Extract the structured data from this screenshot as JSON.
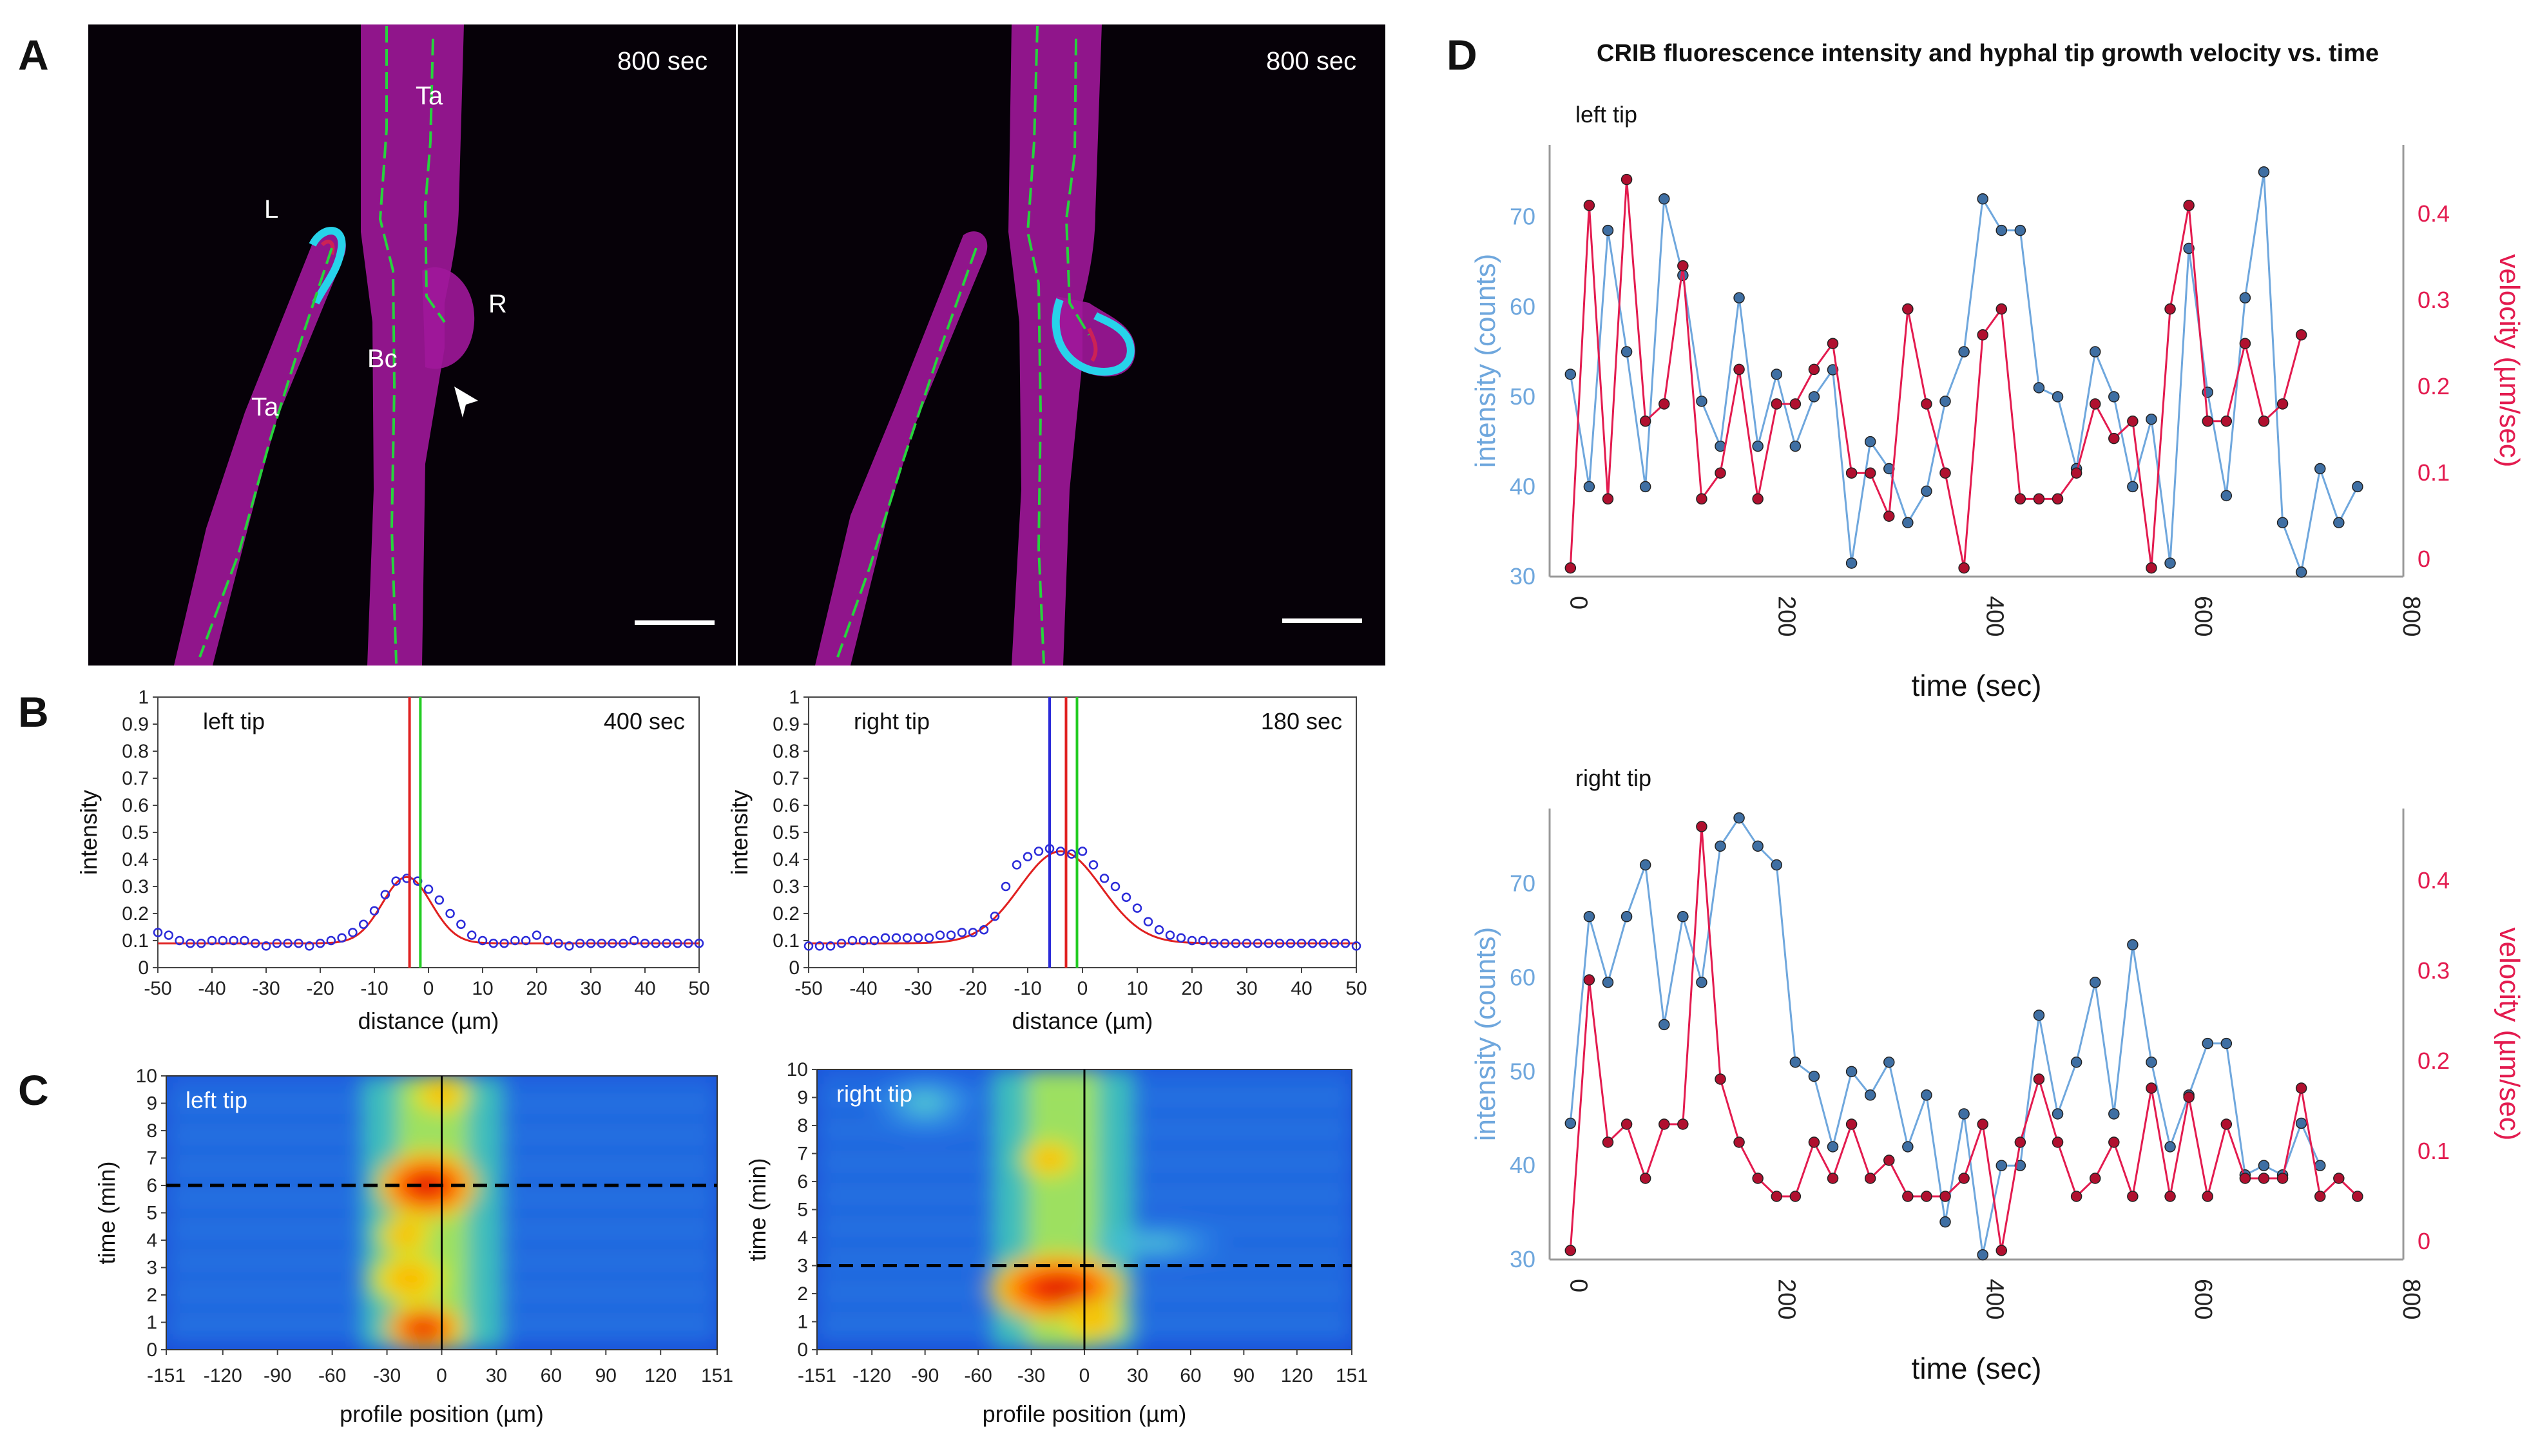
{
  "panels": {
    "A": {
      "label": "A",
      "left": {
        "time": "800 sec",
        "labels": {
          "L": "L",
          "Ta_top": "Ta",
          "R": "R",
          "Bc": "Bc",
          "Ta_bottom": "Ta"
        }
      },
      "right": {
        "time": "800 sec"
      }
    },
    "B": {
      "label": "B",
      "left": {
        "title": "left tip",
        "time": "400 sec",
        "ylabel": "intensity",
        "xlabel": "distance (µm)"
      },
      "right": {
        "title": "right tip",
        "time": "180 sec",
        "ylabel": "intensity",
        "xlabel": "distance (µm)"
      }
    },
    "C": {
      "label": "C",
      "left": {
        "title": "left tip",
        "ylabel": "time (min)",
        "xlabel": "profile position (µm)"
      },
      "right": {
        "title": "right tip",
        "ylabel": "time (min)",
        "xlabel": "profile position (µm)"
      }
    },
    "D": {
      "label": "D",
      "title": "CRIB fluorescence intensity and hyphal tip growth velocity vs. time",
      "left_sub": "left tip",
      "right_sub": "right tip",
      "ylabel_left": "intensity (counts)",
      "ylabel_right": "velocity (µm/sec)",
      "xlabel": "time (sec)"
    }
  },
  "colors": {
    "intensity": "#6fa7dd",
    "velocity": "#e31b4f",
    "fit": "#e02020",
    "marker": "#2b2bd9"
  },
  "chart_data": [
    {
      "id": "B-left",
      "type": "line",
      "title": "left tip",
      "annotation": "400 sec",
      "xlabel": "distance (µm)",
      "ylabel": "intensity",
      "xlim": [
        -50,
        50
      ],
      "ylim": [
        0,
        1
      ],
      "xticks": [
        -50,
        -40,
        -30,
        -20,
        -10,
        0,
        10,
        20,
        30,
        40,
        50
      ],
      "yticks": [
        0,
        0.1,
        0.2,
        0.3,
        0.4,
        0.5,
        0.6,
        0.7,
        0.8,
        0.9,
        1
      ],
      "fit": {
        "baseline": 0.09,
        "amplitude": 0.245,
        "center": -4,
        "sigma": 4.5
      },
      "points_x": [
        -50,
        -48,
        -46,
        -44,
        -42,
        -40,
        -38,
        -36,
        -34,
        -32,
        -30,
        -28,
        -26,
        -24,
        -22,
        -20,
        -18,
        -16,
        -14,
        -12,
        -10,
        -8,
        -6,
        -4,
        -2,
        0,
        2,
        4,
        6,
        8,
        10,
        12,
        14,
        16,
        18,
        20,
        22,
        24,
        26,
        28,
        30,
        32,
        34,
        36,
        38,
        40,
        42,
        44,
        46,
        48,
        50
      ],
      "points_y": [
        0.13,
        0.12,
        0.1,
        0.09,
        0.09,
        0.1,
        0.1,
        0.1,
        0.1,
        0.09,
        0.08,
        0.09,
        0.09,
        0.09,
        0.08,
        0.09,
        0.1,
        0.11,
        0.13,
        0.16,
        0.21,
        0.27,
        0.32,
        0.33,
        0.32,
        0.29,
        0.25,
        0.2,
        0.16,
        0.12,
        0.1,
        0.09,
        0.09,
        0.1,
        0.1,
        0.12,
        0.1,
        0.09,
        0.08,
        0.09,
        0.09,
        0.09,
        0.09,
        0.09,
        0.1,
        0.09,
        0.09,
        0.09,
        0.09,
        0.09,
        0.09
      ],
      "vlines": [
        {
          "x": -3.5,
          "color": "#e02020"
        },
        {
          "x": -1.5,
          "color": "#22cc22"
        }
      ]
    },
    {
      "id": "B-right",
      "type": "line",
      "title": "right tip",
      "annotation": "180 sec",
      "xlabel": "distance (µm)",
      "ylabel": "intensity",
      "xlim": [
        -50,
        50
      ],
      "ylim": [
        0,
        1
      ],
      "xticks": [
        -50,
        -40,
        -30,
        -20,
        -10,
        0,
        10,
        20,
        30,
        40,
        50
      ],
      "yticks": [
        0,
        0.1,
        0.2,
        0.3,
        0.4,
        0.5,
        0.6,
        0.7,
        0.8,
        0.9,
        1
      ],
      "fit": {
        "baseline": 0.09,
        "amplitude": 0.34,
        "center": -4,
        "sigma": 7.5
      },
      "points_x": [
        -50,
        -48,
        -46,
        -44,
        -42,
        -40,
        -38,
        -36,
        -34,
        -32,
        -30,
        -28,
        -26,
        -24,
        -22,
        -20,
        -18,
        -16,
        -14,
        -12,
        -10,
        -8,
        -6,
        -4,
        -2,
        0,
        2,
        4,
        6,
        8,
        10,
        12,
        14,
        16,
        18,
        20,
        22,
        24,
        26,
        28,
        30,
        32,
        34,
        36,
        38,
        40,
        42,
        44,
        46,
        48,
        50
      ],
      "points_y": [
        0.08,
        0.08,
        0.08,
        0.09,
        0.1,
        0.1,
        0.1,
        0.11,
        0.11,
        0.11,
        0.11,
        0.11,
        0.12,
        0.12,
        0.13,
        0.13,
        0.14,
        0.19,
        0.3,
        0.38,
        0.41,
        0.43,
        0.44,
        0.43,
        0.42,
        0.43,
        0.38,
        0.33,
        0.3,
        0.26,
        0.22,
        0.17,
        0.14,
        0.12,
        0.11,
        0.1,
        0.1,
        0.09,
        0.09,
        0.09,
        0.09,
        0.09,
        0.09,
        0.09,
        0.09,
        0.09,
        0.09,
        0.09,
        0.09,
        0.09,
        0.08
      ],
      "vlines": [
        {
          "x": -6,
          "color": "#2b2bd9"
        },
        {
          "x": -3,
          "color": "#e02020"
        },
        {
          "x": -1,
          "color": "#22cc22"
        }
      ]
    },
    {
      "id": "C-left",
      "type": "heatmap",
      "title": "left tip",
      "xlabel": "profile position (µm)",
      "ylabel": "time (min)",
      "xlim": [
        -151,
        151
      ],
      "ylim": [
        0,
        10
      ],
      "xticks": [
        -151,
        -120,
        -90,
        -60,
        -30,
        0,
        30,
        60,
        90,
        120,
        151
      ],
      "yticks": [
        0,
        1,
        2,
        3,
        4,
        5,
        6,
        7,
        8,
        9,
        10
      ],
      "hline": 6,
      "vline": 0
    },
    {
      "id": "C-right",
      "type": "heatmap",
      "title": "right tip",
      "xlabel": "profile position (µm)",
      "ylabel": "time (min)",
      "xlim": [
        -151,
        151
      ],
      "ylim": [
        0,
        10
      ],
      "xticks": [
        -151,
        -120,
        -90,
        -60,
        -30,
        0,
        30,
        60,
        90,
        120,
        151
      ],
      "yticks": [
        0,
        1,
        2,
        3,
        4,
        5,
        6,
        7,
        8,
        9,
        10
      ],
      "hline": 3,
      "vline": 0
    },
    {
      "id": "D-left",
      "type": "line",
      "title": "left tip",
      "xlabel": "time (sec)",
      "ylabel": "intensity (counts)",
      "y2label": "velocity (µm/sec)",
      "xlim": [
        -20,
        800
      ],
      "ylim": [
        30,
        78
      ],
      "y2lim": [
        -0.02,
        0.48
      ],
      "xticks": [
        0,
        200,
        400,
        600,
        800
      ],
      "yticks": [
        30,
        40,
        50,
        60,
        70
      ],
      "y2ticks": [
        0,
        0.1,
        0.2,
        0.3,
        0.4
      ],
      "series": [
        {
          "name": "intensity",
          "axis": "left",
          "x": [
            0,
            18,
            36,
            54,
            72,
            90,
            108,
            126,
            144,
            162,
            180,
            198,
            216,
            234,
            252,
            270,
            288,
            306,
            324,
            342,
            360,
            378,
            396,
            414,
            432,
            450,
            468,
            486,
            504,
            522,
            540,
            558,
            576,
            594,
            612,
            630,
            648,
            666,
            684,
            702,
            720,
            738,
            756
          ],
          "values": [
            52.5,
            40,
            68.5,
            55,
            40,
            72,
            63.5,
            49.5,
            44.5,
            61,
            44.5,
            52.5,
            44.5,
            50,
            53,
            31.5,
            45,
            42,
            36,
            39.5,
            49.5,
            55,
            72,
            68.5,
            68.5,
            51,
            50,
            42,
            55,
            50,
            40,
            47.5,
            31.5,
            66.5,
            50.5,
            39,
            61,
            75,
            36,
            30.5,
            42,
            36,
            40
          ]
        },
        {
          "name": "velocity",
          "axis": "right",
          "x": [
            0,
            18,
            36,
            54,
            72,
            90,
            108,
            126,
            144,
            162,
            180,
            198,
            216,
            234,
            252,
            270,
            288,
            306,
            324,
            342,
            360,
            378,
            396,
            414,
            432,
            450,
            468,
            486,
            504,
            522,
            540,
            558,
            576,
            594,
            612,
            630,
            648,
            666,
            684,
            702,
            720,
            738,
            756
          ],
          "values": [
            -0.01,
            0.41,
            0.07,
            0.44,
            0.16,
            0.18,
            0.34,
            0.07,
            0.1,
            0.22,
            0.07,
            0.18,
            0.18,
            0.22,
            0.25,
            0.1,
            0.1,
            0.05,
            0.29,
            0.18,
            0.1,
            -0.01,
            0.26,
            0.29,
            0.07,
            0.07,
            0.07,
            0.1,
            0.18,
            0.14,
            0.16,
            -0.01,
            0.29,
            0.41,
            0.16,
            0.16,
            0.25,
            0.16,
            0.18,
            0.26,
            null,
            null,
            null
          ]
        }
      ]
    },
    {
      "id": "D-right",
      "type": "line",
      "title": "right tip",
      "xlabel": "time (sec)",
      "ylabel": "intensity (counts)",
      "y2label": "velocity (µm/sec)",
      "xlim": [
        -20,
        800
      ],
      "ylim": [
        30,
        78
      ],
      "y2lim": [
        -0.02,
        0.48
      ],
      "xticks": [
        0,
        200,
        400,
        600,
        800
      ],
      "yticks": [
        30,
        40,
        50,
        60,
        70
      ],
      "y2ticks": [
        0,
        0.1,
        0.2,
        0.3,
        0.4
      ],
      "series": [
        {
          "name": "intensity",
          "axis": "left",
          "x": [
            0,
            18,
            36,
            54,
            72,
            90,
            108,
            126,
            144,
            162,
            180,
            198,
            216,
            234,
            252,
            270,
            288,
            306,
            324,
            342,
            360,
            378,
            396,
            414,
            432,
            450,
            468,
            486,
            504,
            522,
            540,
            558,
            576,
            594,
            612,
            630,
            648,
            666,
            684,
            702,
            720,
            738,
            756
          ],
          "values": [
            44.5,
            66.5,
            59.5,
            66.5,
            72,
            55,
            66.5,
            59.5,
            74,
            77,
            74,
            72,
            51,
            49.5,
            42,
            50,
            47.5,
            51,
            42,
            47.5,
            34,
            45.5,
            30.5,
            40,
            40,
            56,
            45.5,
            51,
            59.5,
            45.5,
            63.5,
            51,
            42,
            47.5,
            53,
            53,
            39,
            40,
            39,
            44.5,
            40,
            null,
            null
          ]
        },
        {
          "name": "velocity",
          "axis": "right",
          "x": [
            0,
            18,
            36,
            54,
            72,
            90,
            108,
            126,
            144,
            162,
            180,
            198,
            216,
            234,
            252,
            270,
            288,
            306,
            324,
            342,
            360,
            378,
            396,
            414,
            432,
            450,
            468,
            486,
            504,
            522,
            540,
            558,
            576,
            594,
            612,
            630,
            648,
            666,
            684,
            702,
            720,
            738,
            756
          ],
          "values": [
            -0.01,
            0.29,
            0.11,
            0.13,
            0.07,
            0.13,
            0.13,
            0.46,
            0.18,
            0.11,
            0.07,
            0.05,
            0.05,
            0.11,
            0.07,
            0.13,
            0.07,
            0.09,
            0.05,
            0.05,
            0.05,
            0.07,
            0.13,
            -0.01,
            0.11,
            0.18,
            0.11,
            0.05,
            0.07,
            0.11,
            0.05,
            0.17,
            0.05,
            0.16,
            0.05,
            0.13,
            0.07,
            0.07,
            0.07,
            0.17,
            0.05,
            0.07,
            0.05
          ]
        }
      ]
    }
  ]
}
